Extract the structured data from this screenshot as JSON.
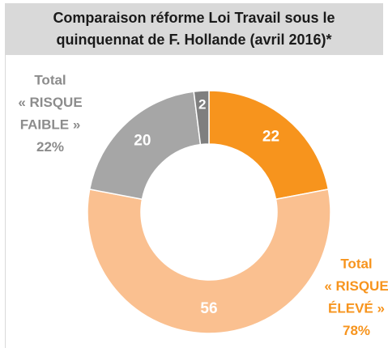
{
  "chart_data": {
    "type": "donut",
    "title": "Comparaison réforme Loi Travail sous le quinquennat de F. Hollande (avril 2016)*",
    "values": [
      22,
      56,
      20,
      2
    ],
    "colors": [
      "#f7941d",
      "#fac090",
      "#a6a6a6",
      "#7f7f7f"
    ],
    "annotations": [
      {
        "lines": [
          "Total",
          "« RISQUE",
          "FAIBLE »",
          "22%"
        ],
        "color": "#8c8c8c"
      },
      {
        "lines": [
          "Total",
          "« RISQUE",
          "ÉLEVÉ  »",
          "78%"
        ],
        "color": "#f7941d"
      }
    ]
  }
}
